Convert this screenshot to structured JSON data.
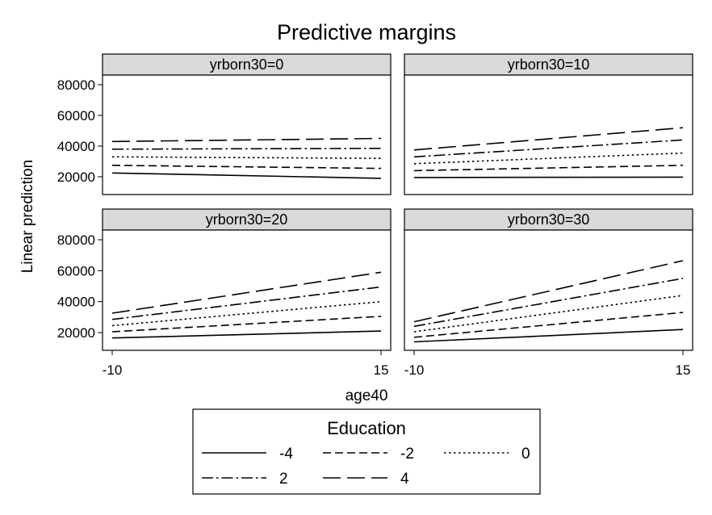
{
  "chart_data": {
    "type": "line",
    "title": "Predictive margins",
    "xlabel": "age40",
    "ylabel": "Linear prediction",
    "x_ticks": [
      -10,
      15
    ],
    "y_ticks": [
      20000,
      40000,
      60000,
      80000
    ],
    "y_tick_labels": [
      "20000",
      "40000",
      "60000",
      "80000"
    ],
    "x_tick_labels": [
      "-10",
      "15"
    ],
    "xlim": [
      -11,
      15.8
    ],
    "ylim": [
      12000,
      86000
    ],
    "grid": false,
    "legend": {
      "title": "Education",
      "placement": "bottom",
      "entries": [
        "-4",
        "-2",
        "0",
        "2",
        "4"
      ]
    },
    "series_styles": {
      "-4": "solid",
      "-2": "dash",
      "0": "dot",
      "2": "dashdot",
      "4": "longdash"
    },
    "panels": [
      {
        "label": "yrborn30=0",
        "x": [
          -10,
          15
        ],
        "series": [
          {
            "name": "-4",
            "values": [
              22500,
              19000
            ]
          },
          {
            "name": "-2",
            "values": [
              27500,
              25500
            ]
          },
          {
            "name": "0",
            "values": [
              33000,
              32000
            ]
          },
          {
            "name": "2",
            "values": [
              38000,
              38500
            ]
          },
          {
            "name": "4",
            "values": [
              43000,
              45000
            ]
          }
        ]
      },
      {
        "label": "yrborn30=10",
        "x": [
          -10,
          15
        ],
        "series": [
          {
            "name": "-4",
            "values": [
              19500,
              19800
            ]
          },
          {
            "name": "-2",
            "values": [
              24000,
              27500
            ]
          },
          {
            "name": "0",
            "values": [
              28500,
              35500
            ]
          },
          {
            "name": "2",
            "values": [
              33000,
              44000
            ]
          },
          {
            "name": "4",
            "values": [
              37500,
              52000
            ]
          }
        ]
      },
      {
        "label": "yrborn30=20",
        "x": [
          -10,
          15
        ],
        "series": [
          {
            "name": "-4",
            "values": [
              16500,
              21000
            ]
          },
          {
            "name": "-2",
            "values": [
              20500,
              30500
            ]
          },
          {
            "name": "0",
            "values": [
              24500,
              40000
            ]
          },
          {
            "name": "2",
            "values": [
              28500,
              49500
            ]
          },
          {
            "name": "4",
            "values": [
              32500,
              59000
            ]
          }
        ]
      },
      {
        "label": "yrborn30=30",
        "x": [
          -10,
          15
        ],
        "series": [
          {
            "name": "-4",
            "values": [
              14000,
              22000
            ]
          },
          {
            "name": "-2",
            "values": [
              17000,
              33000
            ]
          },
          {
            "name": "0",
            "values": [
              20500,
              44000
            ]
          },
          {
            "name": "2",
            "values": [
              24000,
              55000
            ]
          },
          {
            "name": "4",
            "values": [
              27000,
              66500
            ]
          }
        ]
      }
    ]
  }
}
